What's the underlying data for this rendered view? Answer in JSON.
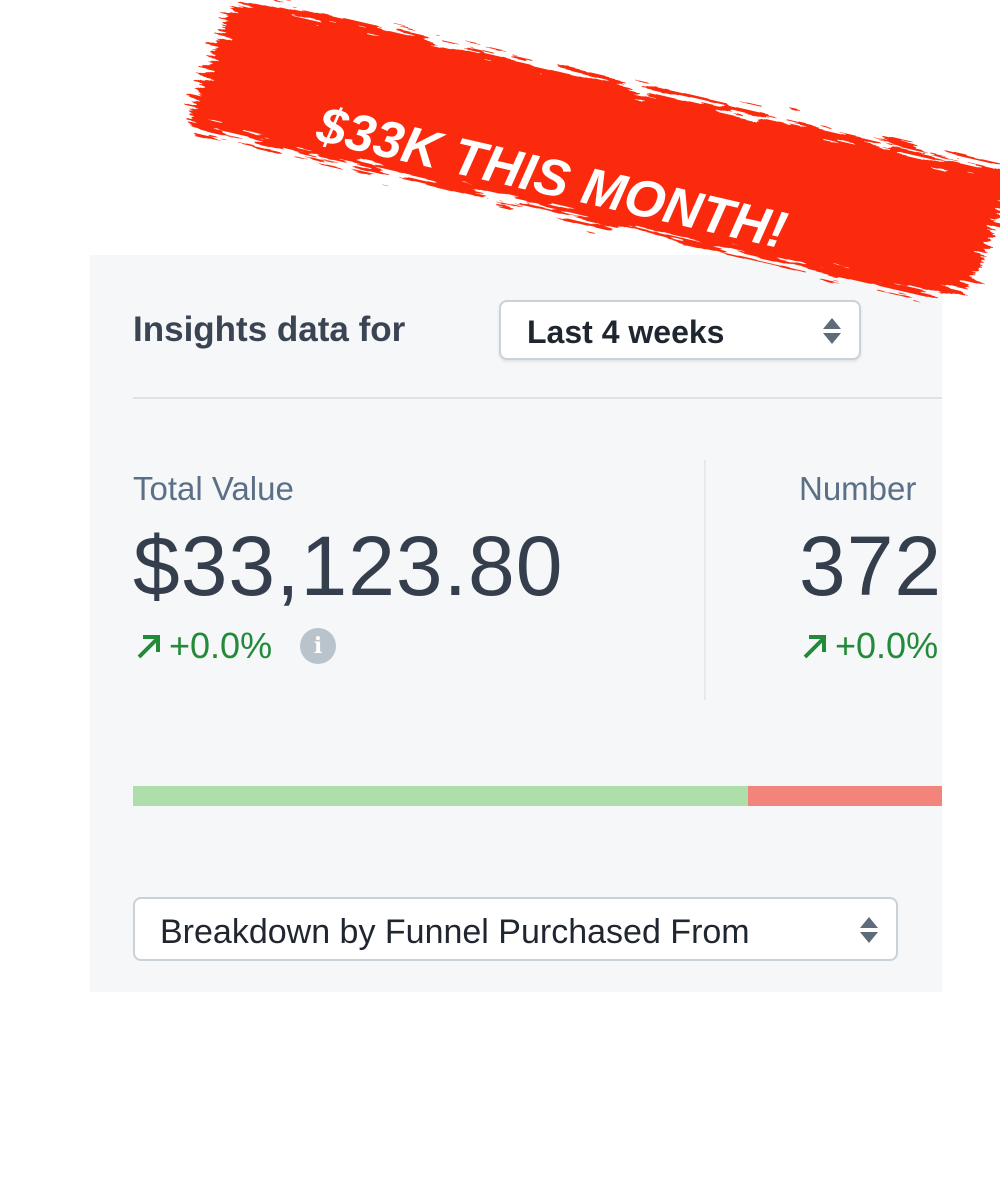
{
  "banner": {
    "text": "$33K THIS MONTH!",
    "color": "#fb2a10"
  },
  "header": {
    "title": "Insights data for",
    "period_select": {
      "value": "Last 4 weeks"
    }
  },
  "metrics": [
    {
      "label": "Total Value",
      "value": "$33,123.80",
      "change": "+0.0%",
      "trend_icon": "arrow-up-right-icon",
      "info_icon": "info-icon"
    },
    {
      "label": "Number",
      "value": "372",
      "change": "+0.0%",
      "trend_icon": "arrow-up-right-icon"
    }
  ],
  "progress_bar": {
    "green_percent": 76,
    "red_percent": 24,
    "colors": {
      "green": "#aedea9",
      "red": "#f2847c"
    }
  },
  "breakdown_select": {
    "value": "Breakdown by Funnel Purchased From"
  },
  "colors": {
    "positive": "#238a3a",
    "text": "#353e4c",
    "label": "#5b6f86"
  }
}
